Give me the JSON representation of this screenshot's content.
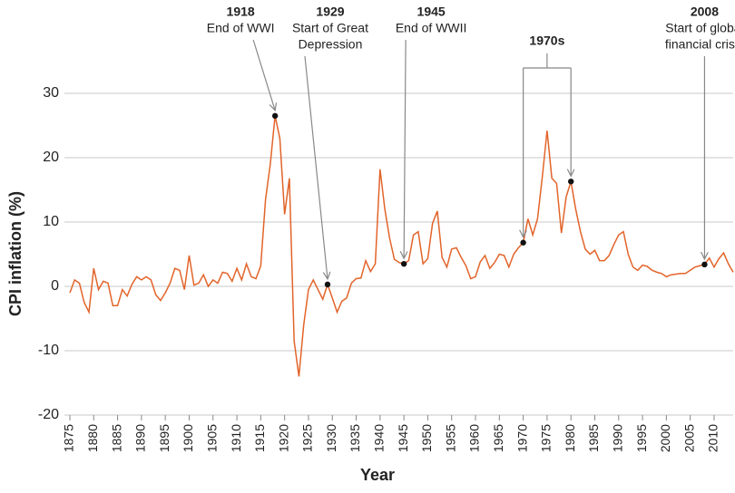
{
  "chart_data": {
    "type": "line",
    "x_label": "Year",
    "y_label": "CPI inflation (%)",
    "color": "#e2642a",
    "grid": true,
    "xlim": [
      1875,
      2014
    ],
    "ylim": [
      -20,
      30
    ],
    "xticks": [
      1875,
      1880,
      1885,
      1890,
      1895,
      1900,
      1905,
      1910,
      1915,
      1920,
      1925,
      1930,
      1935,
      1940,
      1945,
      1950,
      1955,
      1960,
      1965,
      1970,
      1975,
      1980,
      1985,
      1990,
      1995,
      2000,
      2005,
      2010
    ],
    "yticks": [
      -20,
      -10,
      0,
      10,
      20,
      30
    ],
    "x": [
      1875,
      1876,
      1877,
      1878,
      1879,
      1880,
      1881,
      1882,
      1883,
      1884,
      1885,
      1886,
      1887,
      1888,
      1889,
      1890,
      1891,
      1892,
      1893,
      1894,
      1895,
      1896,
      1897,
      1898,
      1899,
      1900,
      1901,
      1902,
      1903,
      1904,
      1905,
      1906,
      1907,
      1908,
      1909,
      1910,
      1911,
      1912,
      1913,
      1914,
      1915,
      1916,
      1917,
      1918,
      1919,
      1920,
      1921,
      1922,
      1923,
      1924,
      1925,
      1926,
      1927,
      1928,
      1929,
      1930,
      1931,
      1932,
      1933,
      1934,
      1935,
      1936,
      1937,
      1938,
      1939,
      1940,
      1941,
      1942,
      1943,
      1944,
      1945,
      1946,
      1947,
      1948,
      1949,
      1950,
      1951,
      1952,
      1953,
      1954,
      1955,
      1956,
      1957,
      1958,
      1959,
      1960,
      1961,
      1962,
      1963,
      1964,
      1965,
      1966,
      1967,
      1968,
      1969,
      1970,
      1971,
      1972,
      1973,
      1974,
      1975,
      1976,
      1977,
      1978,
      1979,
      1980,
      1981,
      1982,
      1983,
      1984,
      1985,
      1986,
      1987,
      1988,
      1989,
      1990,
      1991,
      1992,
      1993,
      1994,
      1995,
      1996,
      1997,
      1998,
      1999,
      2000,
      2001,
      2002,
      2003,
      2004,
      2005,
      2006,
      2007,
      2008,
      2009,
      2010,
      2011,
      2012,
      2013,
      2014
    ],
    "values": [
      -1,
      1,
      0.5,
      -2.5,
      -4,
      2.8,
      -0.5,
      0.8,
      0.5,
      -3,
      -3,
      -0.5,
      -1.5,
      0.3,
      1.5,
      1,
      1.5,
      1,
      -1.3,
      -2.2,
      -1,
      0.5,
      2.8,
      2.5,
      -0.5,
      4.8,
      0.2,
      0.5,
      1.8,
      0,
      1,
      0.5,
      2.2,
      2,
      0.8,
      2.8,
      1,
      3.5,
      1.5,
      1.2,
      3.2,
      13.5,
      19,
      26.5,
      23,
      11.2,
      16.8,
      -8.5,
      -14,
      -6,
      -0.5,
      1,
      -0.5,
      -2,
      0.3,
      -1.8,
      -4,
      -2.3,
      -1.8,
      0.5,
      1.2,
      1.3,
      4,
      2.3,
      3.5,
      18.2,
      12,
      7.5,
      4.2,
      3.7,
      3.5,
      4,
      8,
      8.5,
      3.5,
      4.3,
      9.8,
      11.7,
      4.5,
      3,
      5.8,
      6,
      4.5,
      3.2,
      1.2,
      1.5,
      3.8,
      4.8,
      2.8,
      3.7,
      5,
      4.8,
      3,
      5,
      6,
      6.8,
      10.5,
      8,
      10.5,
      17,
      24.2,
      16.8,
      16,
      8.3,
      13.9,
      16.3,
      12,
      8.5,
      5.8,
      5,
      5.6,
      4,
      4,
      4.8,
      6.5,
      8,
      8.5,
      5,
      3,
      2.5,
      3.3,
      3.1,
      2.5,
      2.2,
      2,
      1.5,
      1.8,
      1.9,
      2,
      2,
      2.5,
      3,
      3.2,
      3.4,
      4.4,
      3,
      4.3,
      5.2,
      3.5,
      2.2
    ],
    "annotations": [
      {
        "year": 1918,
        "lines": [
          "End of WWI"
        ]
      },
      {
        "year": 1929,
        "lines": [
          "Start of Great",
          "Depression"
        ]
      },
      {
        "year": 1945,
        "lines": [
          "End of WWII"
        ]
      },
      {
        "year": 2008,
        "lines": [
          "Start of global",
          "financial crisis"
        ]
      }
    ],
    "period": {
      "label": "1970s",
      "start": 1970,
      "end": 1980
    }
  }
}
